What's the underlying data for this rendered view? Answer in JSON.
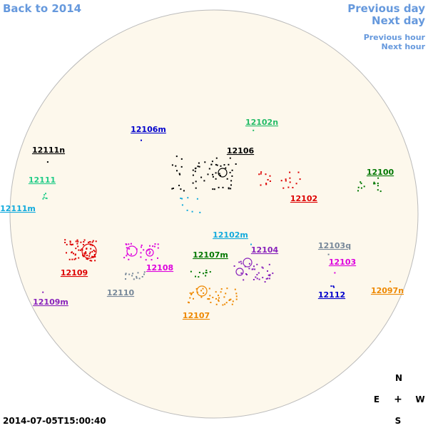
{
  "nav": {
    "back": "Back to 2014",
    "previous_day": "Previous day",
    "next_day": "Next day",
    "previous_hour": "Previous hour",
    "next_hour": "Next hour"
  },
  "compass": {
    "north": "N",
    "east": "E",
    "center": "+",
    "west": "W",
    "south": "S"
  },
  "timestamp": "2014-07-05T15:00:40",
  "regions": [
    {
      "label": "12106m",
      "color": "#0000cc"
    },
    {
      "label": "12102n",
      "color": "#22bb66"
    },
    {
      "label": "12111n",
      "color": "#000000"
    },
    {
      "label": "12106",
      "color": "#000000"
    },
    {
      "label": "12111",
      "color": "#22cc88"
    },
    {
      "label": "12100",
      "color": "#007700"
    },
    {
      "label": "12111m",
      "color": "#11aadd"
    },
    {
      "label": "12102",
      "color": "#dd0000"
    },
    {
      "label": "12102m",
      "color": "#11aadd"
    },
    {
      "label": "12103q",
      "color": "#778899"
    },
    {
      "label": "12109",
      "color": "#dd0000"
    },
    {
      "label": "12108",
      "color": "#dd00dd"
    },
    {
      "label": "12107m",
      "color": "#007700"
    },
    {
      "label": "12104",
      "color": "#8822bb"
    },
    {
      "label": "12103",
      "color": "#dd00dd"
    },
    {
      "label": "12110",
      "color": "#778899"
    },
    {
      "label": "12112",
      "color": "#0000cc"
    },
    {
      "label": "12097n",
      "color": "#ee8800"
    },
    {
      "label": "12109m",
      "color": "#8822bb"
    },
    {
      "label": "12107",
      "color": "#ee8800"
    }
  ]
}
